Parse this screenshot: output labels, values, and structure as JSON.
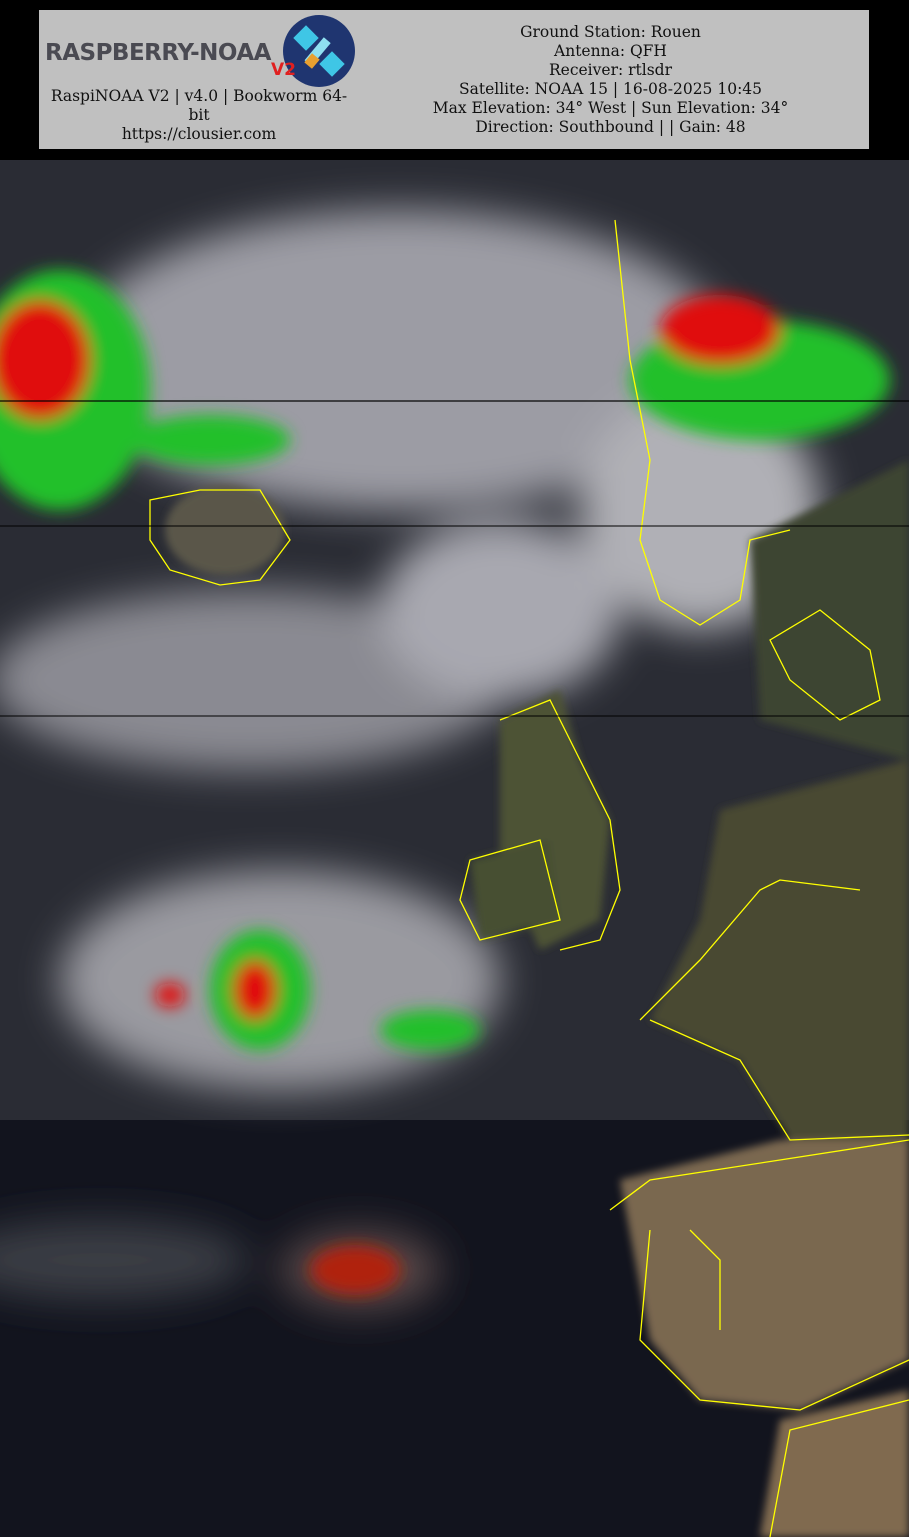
{
  "header": {
    "logo": {
      "text": "RASPBERRY-NOAA",
      "badge": "V2"
    },
    "software_line": "RaspiNOAA V2 | v4.0 | Bookworm 64-bit",
    "website": "https://clousier.com",
    "station_lines": [
      "Ground Station: Rouen",
      "Antenna: QFH",
      "Receiver: rtlsdr",
      "Satellite: NOAA 15 | 16-08-2025 10:45",
      "Max Elevation: 34° West | Sun Elevation: 34°",
      "Direction: Southbound | | Gain: 48"
    ]
  },
  "image": {
    "colors": {
      "coastline": "#ffff00",
      "ocean": "#1a1d26",
      "cloud": "#c8c8cc",
      "land": "#4e5236",
      "precip_green": "#22c02a",
      "precip_red": "#e01010"
    }
  }
}
